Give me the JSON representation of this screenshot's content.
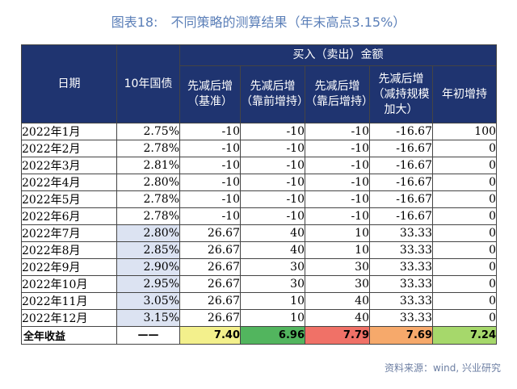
{
  "title": {
    "label": "图表18:",
    "text": "不同策略的测算结果（年末高点3.15%）"
  },
  "colors": {
    "header_bg": "#1f3470",
    "yield_highlight": "#dce3f2",
    "total_yellow": "#f3f08c",
    "total_green": "#52b55e",
    "total_red": "#f07167",
    "total_orange": "#f6a96b",
    "total_lightgreen": "#a6d86b"
  },
  "table": {
    "headers": {
      "date": "日期",
      "yield": "10年国债",
      "group": "买入（卖出）金额",
      "cols": [
        "先减后增（基准）",
        "先减后增（靠前增持）",
        "先减后增（靠后增持）",
        "先减后增（减持规模加大）",
        "年初增持"
      ]
    },
    "rows": [
      {
        "date": "2022年1月",
        "yield": "2.75%",
        "v1": "-10",
        "v2": "-10",
        "v3": "-10",
        "v4": "-16.67",
        "v5": "100"
      },
      {
        "date": "2022年2月",
        "yield": "2.78%",
        "v1": "-10",
        "v2": "-10",
        "v3": "-10",
        "v4": "-16.67",
        "v5": "0"
      },
      {
        "date": "2022年3月",
        "yield": "2.81%",
        "v1": "-10",
        "v2": "-10",
        "v3": "-10",
        "v4": "-16.67",
        "v5": "0"
      },
      {
        "date": "2022年4月",
        "yield": "2.80%",
        "v1": "-10",
        "v2": "-10",
        "v3": "-10",
        "v4": "-16.67",
        "v5": "0"
      },
      {
        "date": "2022年5月",
        "yield": "2.78%",
        "v1": "-10",
        "v2": "-10",
        "v3": "-10",
        "v4": "-16.67",
        "v5": "0"
      },
      {
        "date": "2022年6月",
        "yield": "2.78%",
        "v1": "-10",
        "v2": "-10",
        "v3": "-10",
        "v4": "-16.67",
        "v5": "0"
      },
      {
        "date": "2022年7月",
        "yield": "2.80%",
        "v1": "26.67",
        "v2": "40",
        "v3": "10",
        "v4": "33.33",
        "v5": "0"
      },
      {
        "date": "2022年8月",
        "yield": "2.85%",
        "v1": "26.67",
        "v2": "40",
        "v3": "10",
        "v4": "33.33",
        "v5": "0"
      },
      {
        "date": "2022年9月",
        "yield": "2.90%",
        "v1": "26.67",
        "v2": "30",
        "v3": "30",
        "v4": "33.33",
        "v5": "0"
      },
      {
        "date": "2022年10月",
        "yield": "2.95%",
        "v1": "26.67",
        "v2": "30",
        "v3": "30",
        "v4": "33.33",
        "v5": "0"
      },
      {
        "date": "2022年11月",
        "yield": "3.05%",
        "v1": "26.67",
        "v2": "10",
        "v3": "40",
        "v4": "33.33",
        "v5": "0"
      },
      {
        "date": "2022年12月",
        "yield": "3.15%",
        "v1": "26.67",
        "v2": "10",
        "v3": "40",
        "v4": "33.33",
        "v5": "0"
      }
    ],
    "total": {
      "label": "全年收益",
      "yield": "——",
      "v1": "7.40",
      "v2": "6.96",
      "v3": "7.79",
      "v4": "7.69",
      "v5": "7.24"
    }
  },
  "source": "资料来源：wind, 兴业研究"
}
